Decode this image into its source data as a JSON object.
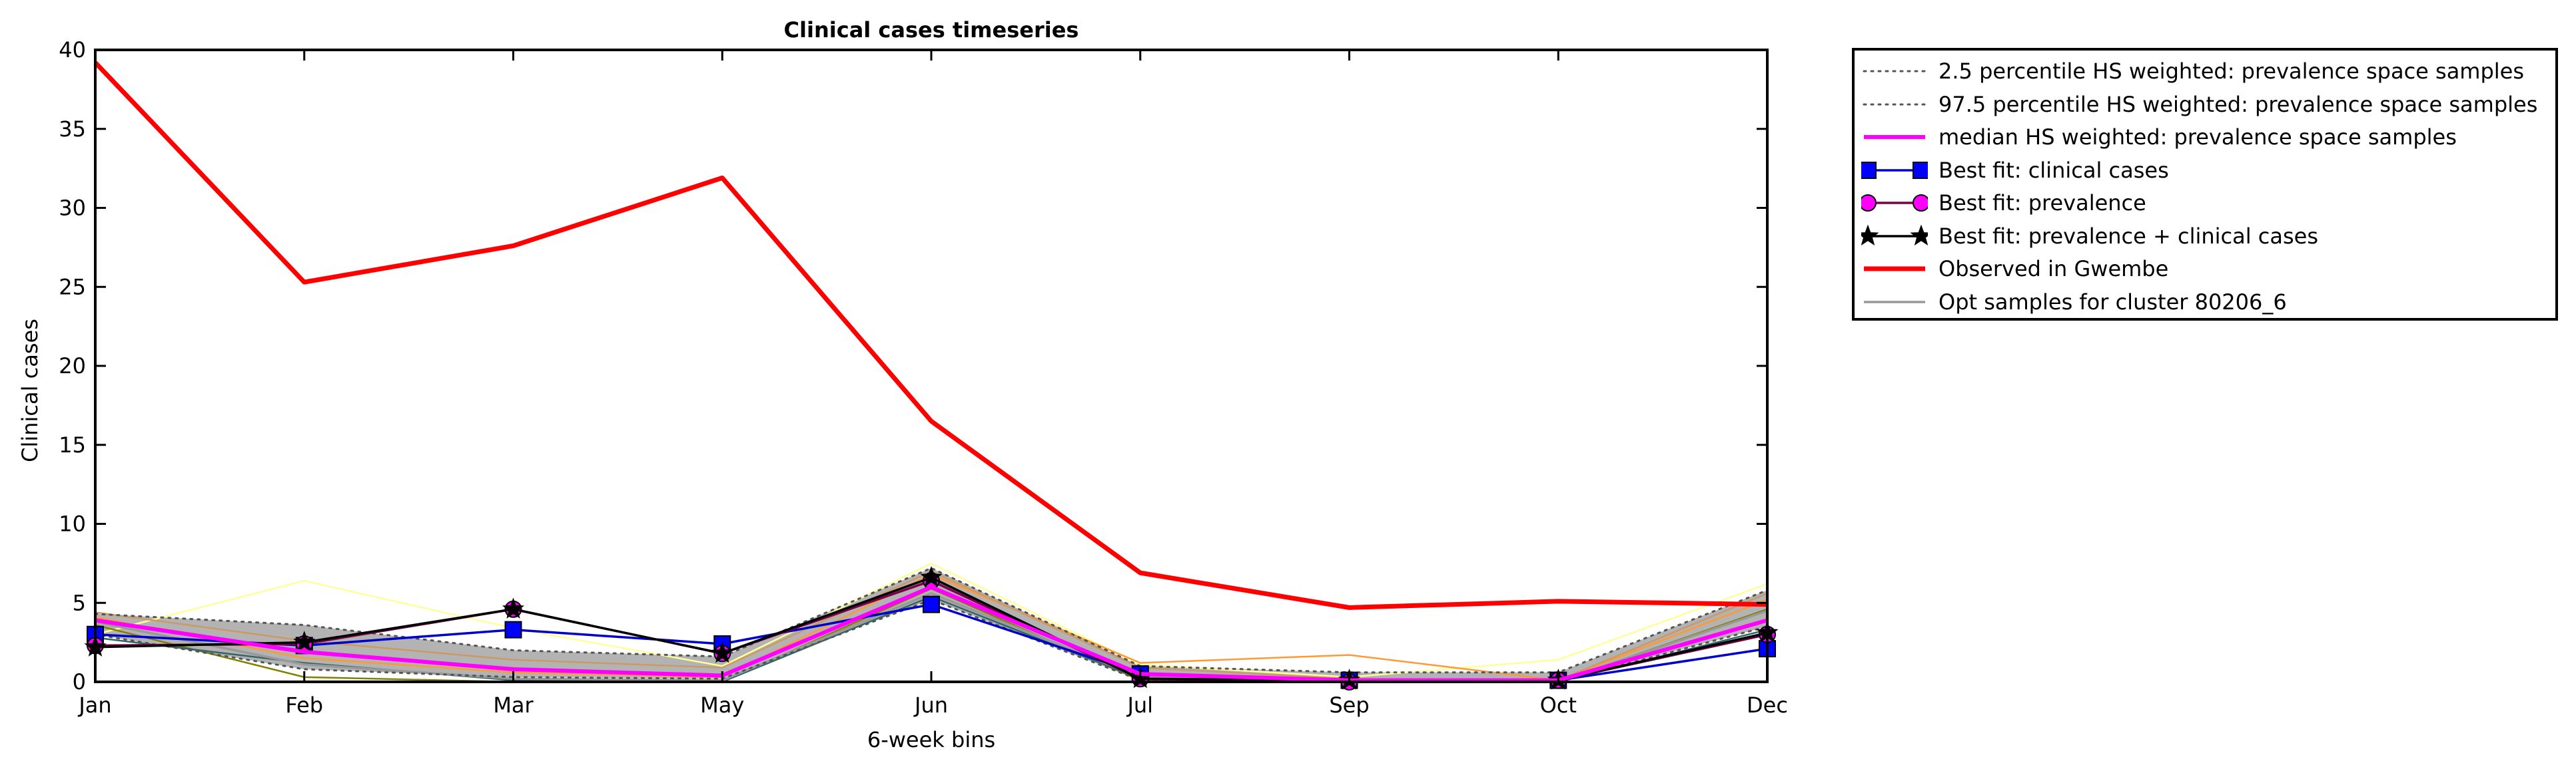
{
  "chart_data": {
    "type": "line",
    "title": "Clinical cases timeseries",
    "xlabel": "6-week bins",
    "ylabel": "Clinical cases",
    "categories": [
      "Jan",
      "Feb",
      "Mar",
      "May",
      "Jun",
      "Jul",
      "Sep",
      "Oct",
      "Dec"
    ],
    "ylim": [
      0,
      40
    ],
    "yticks": [
      0,
      5,
      10,
      15,
      20,
      25,
      30,
      35,
      40
    ],
    "grid": false,
    "legend_position": "outside-right-top",
    "band": {
      "fill": "#b3b3b3",
      "lower": [
        3.0,
        0.8,
        0.3,
        0.2,
        5.2,
        0.1,
        0.0,
        0.0,
        3.5
      ],
      "upper": [
        4.3,
        3.6,
        2.0,
        1.6,
        7.2,
        1.0,
        0.6,
        0.6,
        5.8
      ]
    },
    "series": [
      {
        "name": "2.5 percentile HS weighted: prevalence space samples",
        "style": "dotted",
        "color": "#555555",
        "values": [
          3.0,
          0.8,
          0.3,
          0.2,
          5.2,
          0.1,
          0.0,
          0.0,
          3.5
        ]
      },
      {
        "name": "97.5 percentile HS weighted: prevalence space samples",
        "style": "dotted",
        "color": "#555555",
        "values": [
          4.3,
          3.6,
          2.0,
          1.6,
          7.2,
          1.0,
          0.6,
          0.6,
          5.8
        ]
      },
      {
        "name": "median HS weighted: prevalence space samples",
        "style": "solid",
        "color": "#ff00ff",
        "width": 6,
        "values": [
          3.9,
          1.9,
          0.8,
          0.4,
          6.0,
          0.5,
          0.1,
          0.1,
          3.9
        ]
      },
      {
        "name": "Best fit: clinical cases",
        "style": "solid",
        "color": "#0000cc",
        "marker": "square",
        "marker_color": "#0000ff",
        "values": [
          3.0,
          2.3,
          3.3,
          2.4,
          4.9,
          0.5,
          0.1,
          0.1,
          2.1
        ]
      },
      {
        "name": "Best fit: prevalence",
        "style": "solid",
        "color": "#7a004a",
        "marker": "circle",
        "marker_color": "#ff00ff",
        "values": [
          2.3,
          2.4,
          4.6,
          1.8,
          6.4,
          0.2,
          0.0,
          0.1,
          3.0
        ]
      },
      {
        "name": "Best fit: prevalence + clinical cases",
        "style": "solid",
        "color": "#000000",
        "marker": "star",
        "marker_color": "#000000",
        "values": [
          2.2,
          2.5,
          4.6,
          1.8,
          6.6,
          0.2,
          0.1,
          0.1,
          3.1
        ]
      },
      {
        "name": "Observed in Gwembe",
        "style": "solid",
        "color": "#ff0000",
        "width": 7,
        "values": [
          39.2,
          25.3,
          27.6,
          31.9,
          16.5,
          6.9,
          4.7,
          5.1,
          4.9
        ]
      },
      {
        "name": "Opt samples for cluster 80206_6",
        "style": "solid",
        "color": "#999999",
        "values": [
          3.8,
          1.1,
          0.2,
          0.1,
          5.6,
          0.3,
          0.0,
          0.0,
          4.5
        ]
      }
    ],
    "extra_sample_lines": [
      {
        "color": "#ffff99",
        "values": [
          3.0,
          6.4,
          3.4,
          1.0,
          7.5,
          1.1,
          0.3,
          1.4,
          6.2
        ]
      },
      {
        "color": "#ff9933",
        "values": [
          4.1,
          1.5,
          0.6,
          0.3,
          6.8,
          1.2,
          1.7,
          0.1,
          5.2
        ]
      },
      {
        "color": "#cc9966",
        "values": [
          4.4,
          2.6,
          1.4,
          0.9,
          7.0,
          0.9,
          0.2,
          0.1,
          5.6
        ]
      },
      {
        "color": "#808000",
        "values": [
          3.6,
          0.3,
          0.0,
          0.0,
          5.9,
          0.1,
          0.0,
          0.0,
          4.6
        ]
      },
      {
        "color": "#336666",
        "values": [
          2.8,
          1.2,
          0.1,
          0.0,
          5.4,
          0.2,
          0.0,
          0.0,
          3.3
        ]
      }
    ]
  }
}
